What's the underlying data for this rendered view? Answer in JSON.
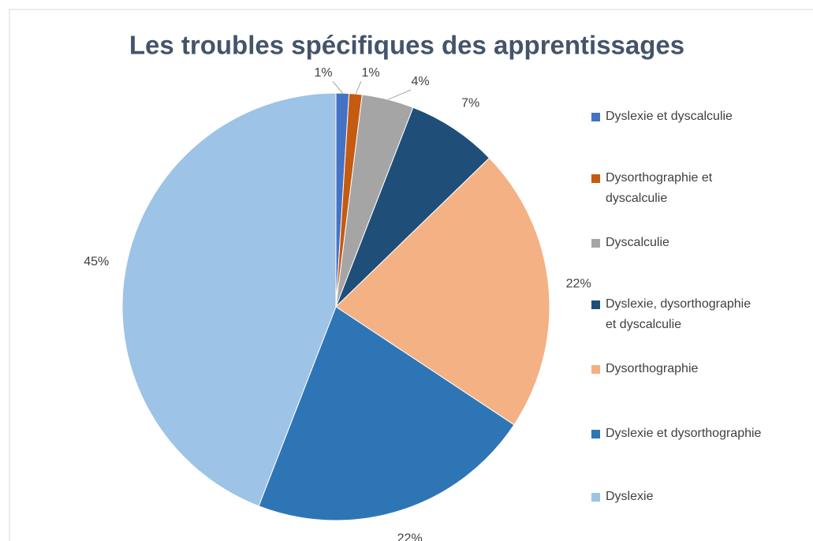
{
  "chart_data": {
    "type": "pie",
    "title": "Les troubles spécifiques des apprentissages",
    "categories": [
      "Dyslexie et dyscalculie",
      "Dysorthographie et dyscalculie",
      "Dyscalculie",
      "Dyslexie, dysorthographie et dyscalculie",
      "Dysorthographie",
      "Dyslexie et dysorthographie",
      "Dyslexie"
    ],
    "values": [
      1,
      1,
      4,
      7,
      22,
      22,
      45
    ],
    "value_labels": [
      "1%",
      "1%",
      "4%",
      "7%",
      "22%",
      "22%",
      "45%"
    ],
    "colors": [
      "#4472c4",
      "#c55a11",
      "#a5a5a5",
      "#1f4e79",
      "#f4b183",
      "#2e75b6",
      "#9dc3e6"
    ],
    "legend": "right"
  }
}
